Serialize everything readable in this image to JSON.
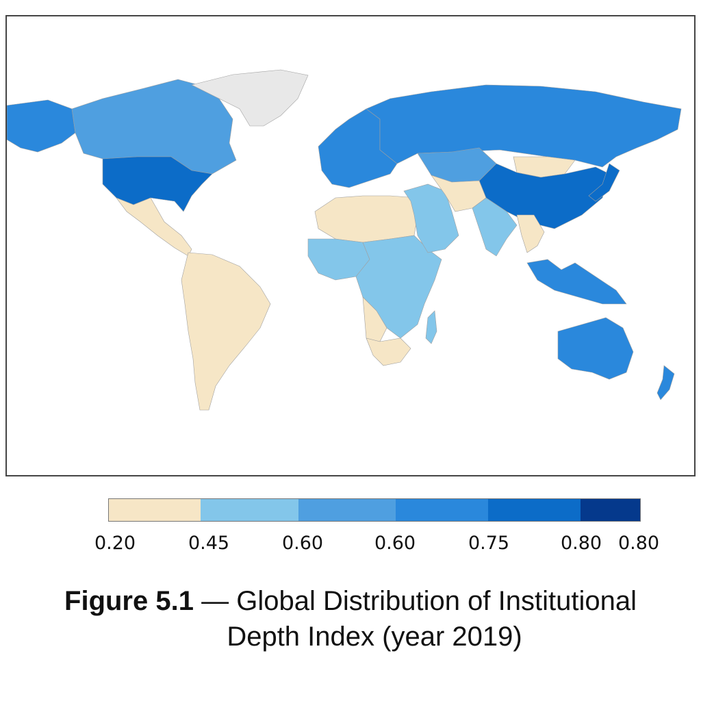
{
  "map": {
    "title": "Global Distribution of Institutional Depth Index",
    "no_data_color": "#e8e8e8",
    "regions": [
      {
        "name": "Alaska",
        "class": 4
      },
      {
        "name": "Canada",
        "class": 3
      },
      {
        "name": "Greenland",
        "class": 0
      },
      {
        "name": "United States",
        "class": 5
      },
      {
        "name": "Mexico and Central America",
        "class": 1
      },
      {
        "name": "South America",
        "class": 1
      },
      {
        "name": "Europe",
        "class": 4
      },
      {
        "name": "Russia",
        "class": 4
      },
      {
        "name": "Kazakhstan",
        "class": 3
      },
      {
        "name": "Mongolia",
        "class": 1
      },
      {
        "name": "China",
        "class": 5
      },
      {
        "name": "Japan",
        "class": 5
      },
      {
        "name": "North Africa",
        "class": 1
      },
      {
        "name": "West Africa",
        "class": 2
      },
      {
        "name": "Central and East Africa",
        "class": 2
      },
      {
        "name": "Angola",
        "class": 1
      },
      {
        "name": "Southern Africa",
        "class": 1
      },
      {
        "name": "Madagascar",
        "class": 2
      },
      {
        "name": "Middle East",
        "class": 2
      },
      {
        "name": "Central Asia",
        "class": 1
      },
      {
        "name": "South Asia",
        "class": 2
      },
      {
        "name": "Southeast Asia",
        "class": 1
      },
      {
        "name": "Indonesia and Philippines",
        "class": 4
      },
      {
        "name": "Australia",
        "class": 4
      },
      {
        "name": "New Zealand",
        "class": 4
      }
    ]
  },
  "legend": {
    "colors": [
      "#f6e6c6",
      "#83c6ea",
      "#4f9fe0",
      "#2a88dc",
      "#0c6cc8",
      "#05398c"
    ],
    "ticks": [
      "0.20",
      "0.45",
      "0.60",
      "0.60",
      "0.75",
      "0.80",
      "0.80"
    ]
  },
  "caption": {
    "label": "Figure 5.1",
    "dash": "—",
    "line1_rest": "Global Distribution of Institutional",
    "line2": "Depth Index (year 2019)"
  }
}
